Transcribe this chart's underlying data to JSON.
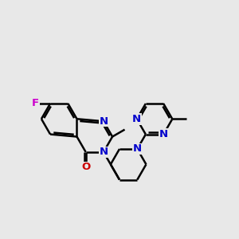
{
  "bg_color": "#e8e8e8",
  "bond_color": "#000000",
  "N_color": "#0000cc",
  "O_color": "#cc0000",
  "F_color": "#cc00cc",
  "line_width": 1.8,
  "font_size": 9.5,
  "fig_size": [
    3.0,
    3.0
  ],
  "dpi": 100,
  "xlim": [
    0,
    10
  ],
  "ylim": [
    2.5,
    8.5
  ]
}
